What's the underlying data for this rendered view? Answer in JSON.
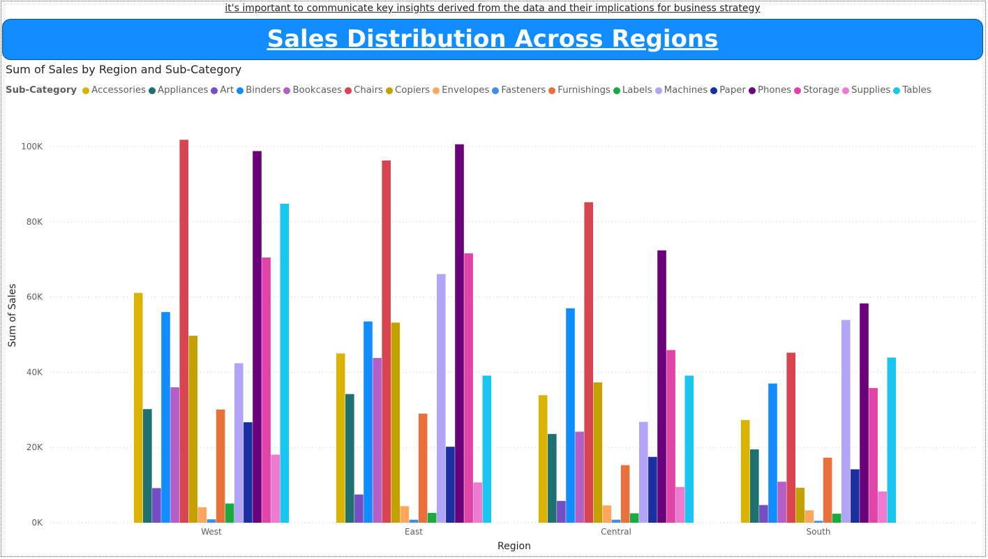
{
  "top_note": "it's important to communicate key insights derived from the data and their implications for business strategy",
  "banner_title": "Sales Distribution Across Regions",
  "visual_title": "Sum of Sales by Region and Sub-Category",
  "legend_title": "Sub-Category",
  "chart_data": {
    "type": "bar",
    "title": "Sum of Sales by Region and Sub-Category",
    "xlabel": "Region",
    "ylabel": "Sum of Sales",
    "categories": [
      "West",
      "East",
      "Central",
      "South"
    ],
    "ylim": [
      0,
      100000
    ],
    "yticks": [
      {
        "value": 0,
        "label": "0K"
      },
      {
        "value": 20000,
        "label": "20K"
      },
      {
        "value": 40000,
        "label": "40K"
      },
      {
        "value": 60000,
        "label": "60K"
      },
      {
        "value": 80000,
        "label": "80K"
      },
      {
        "value": 100000,
        "label": "100K"
      }
    ],
    "grid": true,
    "legend_position": "top-left",
    "series": [
      {
        "name": "Accessories",
        "color": "#d9b300",
        "values": [
          61100,
          45000,
          33900,
          27300
        ]
      },
      {
        "name": "Appliances",
        "color": "#1f7070",
        "values": [
          30200,
          34200,
          23600,
          19500
        ]
      },
      {
        "name": "Art",
        "color": "#744ec2",
        "values": [
          9200,
          7500,
          5800,
          4700
        ]
      },
      {
        "name": "Binders",
        "color": "#118dff",
        "values": [
          56000,
          53500,
          57000,
          37000
        ]
      },
      {
        "name": "Bookcases",
        "color": "#b45ec8",
        "values": [
          36000,
          43800,
          24200,
          10900
        ]
      },
      {
        "name": "Chairs",
        "color": "#d64550",
        "values": [
          101800,
          96300,
          85200,
          45200
        ]
      },
      {
        "name": "Copiers",
        "color": "#c4a000",
        "values": [
          49700,
          53200,
          37300,
          9300
        ]
      },
      {
        "name": "Envelopes",
        "color": "#ffa65f",
        "values": [
          4100,
          4400,
          4600,
          3300
        ]
      },
      {
        "name": "Fasteners",
        "color": "#3d8ef0",
        "values": [
          900,
          800,
          800,
          500
        ]
      },
      {
        "name": "Furnishings",
        "color": "#e8703b",
        "values": [
          30100,
          29000,
          15300,
          17300
        ]
      },
      {
        "name": "Labels",
        "color": "#1aab40",
        "values": [
          5100,
          2600,
          2500,
          2400
        ]
      },
      {
        "name": "Machines",
        "color": "#b2a5f7",
        "values": [
          42400,
          66100,
          26800,
          53900
        ]
      },
      {
        "name": "Paper",
        "color": "#1a2fa0",
        "values": [
          26700,
          20200,
          17500,
          14200
        ]
      },
      {
        "name": "Phones",
        "color": "#6b007b",
        "values": [
          98800,
          100600,
          72400,
          58300
        ]
      },
      {
        "name": "Storage",
        "color": "#e044a7",
        "values": [
          70500,
          71600,
          45900,
          35800
        ]
      },
      {
        "name": "Supplies",
        "color": "#f07ad0",
        "values": [
          18100,
          10700,
          9500,
          8300
        ]
      },
      {
        "name": "Tables",
        "color": "#1ac6f0",
        "values": [
          84800,
          39100,
          39100,
          43900
        ]
      }
    ]
  }
}
